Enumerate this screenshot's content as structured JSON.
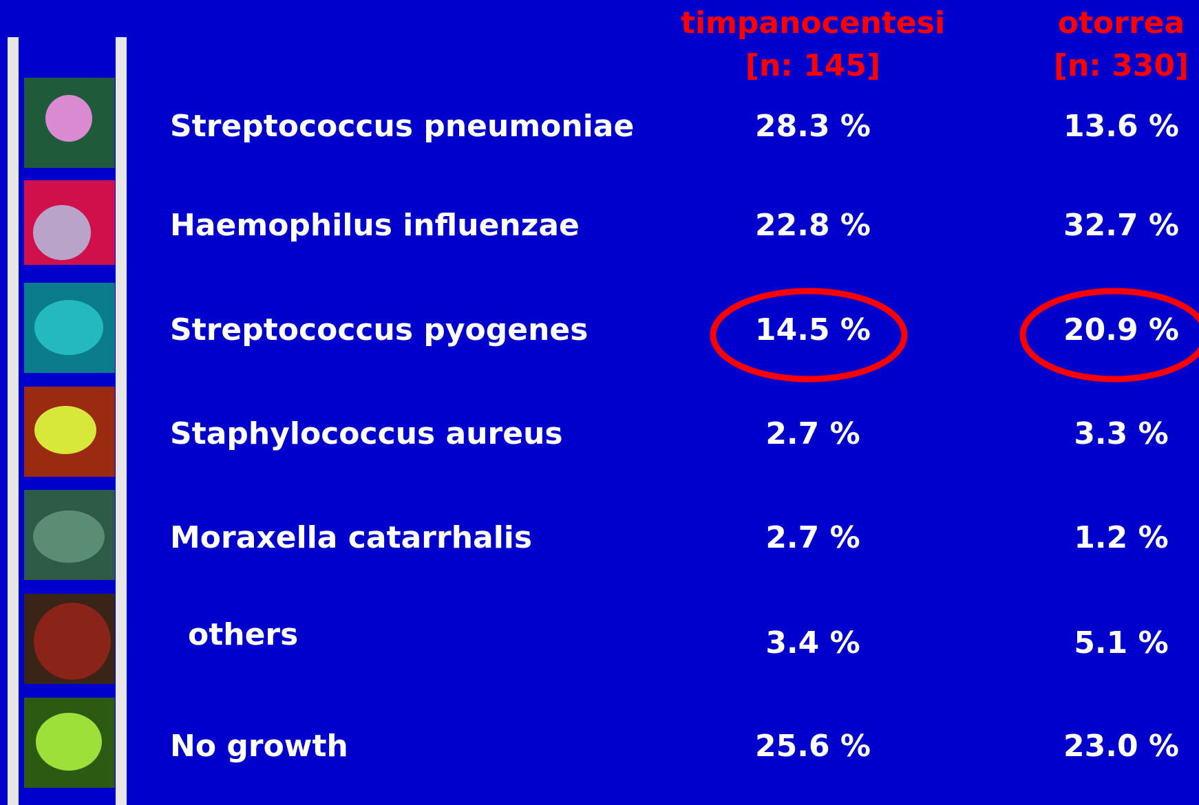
{
  "header": {
    "columns": [
      {
        "title": "timpanocentesi",
        "n": "[n: 145]"
      },
      {
        "title": "otorrea",
        "n": "[n: 330]"
      }
    ]
  },
  "table": {
    "rows": [
      [
        "Streptococcus pneumoniae",
        "28.3 %",
        "13.6 %"
      ],
      [
        "Haemophilus influenzae",
        "22.8 %",
        "32.7 %"
      ],
      [
        "Streptococcus pyogenes",
        "14.5 %",
        "20.9 %"
      ],
      [
        "Staphylococcus aureus",
        "2.7 %",
        "3.3 %"
      ],
      [
        "Moraxella catarrhalis",
        "2.7 %",
        "1.2 %"
      ],
      [
        "others",
        "3.4 %",
        "5.1 %"
      ],
      [
        "No growth",
        "25.6 %",
        "23.0 %"
      ]
    ]
  }
}
